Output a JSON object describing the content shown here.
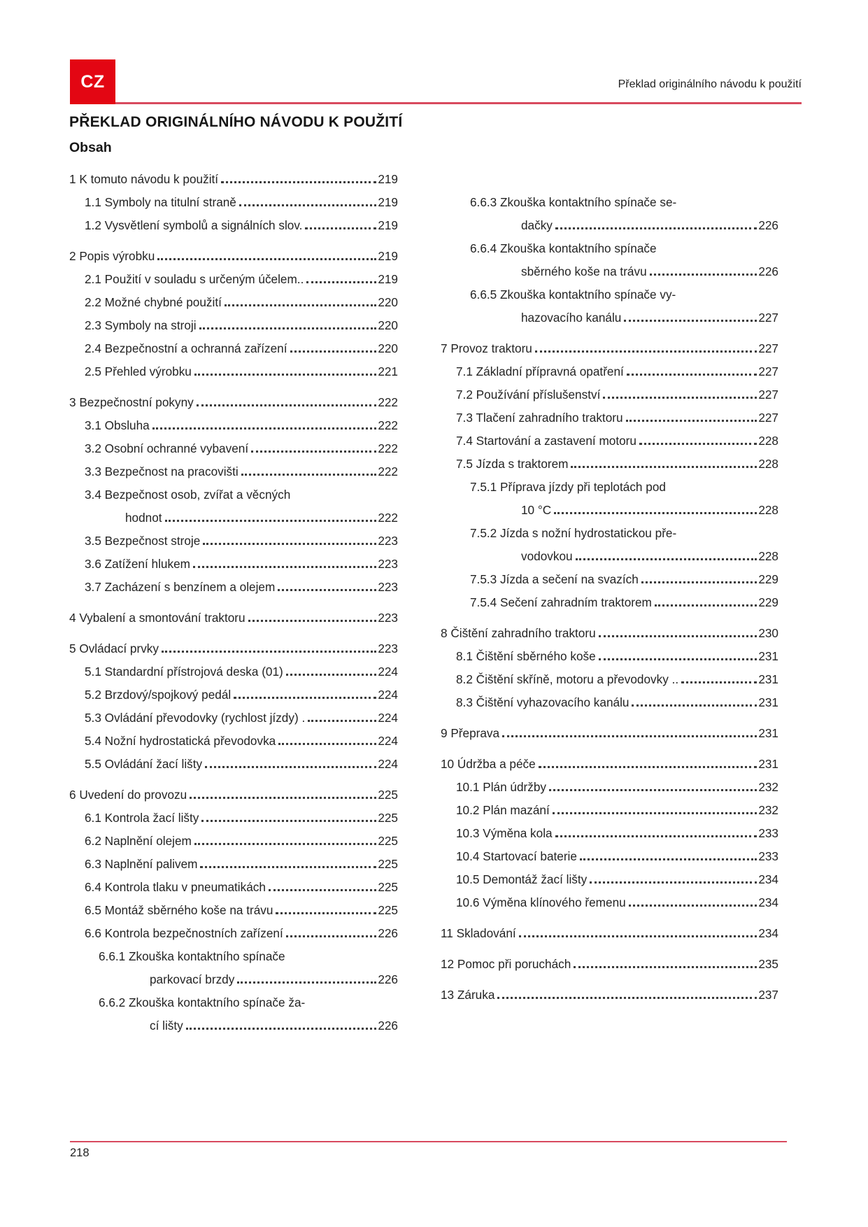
{
  "page": {
    "language_badge": "CZ",
    "header_right": "Překlad originálního návodu k použití",
    "title": "PŘEKLAD ORIGINÁLNÍHO NÁVODU K POUŽITÍ",
    "contents_heading": "Obsah",
    "page_number": "218",
    "accent_color": "#e30613",
    "rule_color": "#d84a5e"
  },
  "toc": {
    "left_column": [
      {
        "level": 1,
        "lines": [
          "1 K tomuto návodu k použití"
        ],
        "page": "219"
      },
      {
        "level": 2,
        "lines": [
          "1.1 Symboly na titulní straně"
        ],
        "page": "219"
      },
      {
        "level": 2,
        "lines": [
          "1.2 Vysvětlení symbolů a signálních slov."
        ],
        "page": "219"
      },
      {
        "level": 1,
        "lines": [
          "2 Popis výrobku"
        ],
        "page": "219"
      },
      {
        "level": 2,
        "lines": [
          "2.1 Použití v souladu s určeným účelem.."
        ],
        "page": "219"
      },
      {
        "level": 2,
        "lines": [
          "2.2 Možné chybné použití"
        ],
        "page": "220"
      },
      {
        "level": 2,
        "lines": [
          "2.3 Symboly na stroji"
        ],
        "page": "220"
      },
      {
        "level": 2,
        "lines": [
          "2.4 Bezpečnostní a ochranná zařízení"
        ],
        "page": "220"
      },
      {
        "level": 2,
        "lines": [
          "2.5 Přehled výrobku"
        ],
        "page": "221"
      },
      {
        "level": 1,
        "lines": [
          "3 Bezpečnostní pokyny"
        ],
        "page": "222"
      },
      {
        "level": 2,
        "lines": [
          "3.1 Obsluha"
        ],
        "page": "222"
      },
      {
        "level": 2,
        "lines": [
          "3.2 Osobní ochranné vybavení"
        ],
        "page": "222"
      },
      {
        "level": 2,
        "lines": [
          "3.3 Bezpečnost na pracovišti"
        ],
        "page": "222"
      },
      {
        "level": 2,
        "lines": [
          "3.4 Bezpečnost osob, zvířat a věcných",
          "hodnot"
        ],
        "page": "222"
      },
      {
        "level": 2,
        "lines": [
          "3.5 Bezpečnost stroje"
        ],
        "page": "223"
      },
      {
        "level": 2,
        "lines": [
          "3.6 Zatížení hlukem"
        ],
        "page": "223"
      },
      {
        "level": 2,
        "lines": [
          "3.7 Zacházení s benzínem a olejem"
        ],
        "page": "223"
      },
      {
        "level": 1,
        "lines": [
          "4 Vybalení a smontování traktoru"
        ],
        "page": "223"
      },
      {
        "level": 1,
        "lines": [
          "5 Ovládací prvky"
        ],
        "page": "223"
      },
      {
        "level": 2,
        "lines": [
          "5.1 Standardní přístrojová deska (01)"
        ],
        "page": "224"
      },
      {
        "level": 2,
        "lines": [
          "5.2 Brzdový/spojkový pedál"
        ],
        "page": "224"
      },
      {
        "level": 2,
        "lines": [
          "5.3 Ovládání převodovky (rychlost jízdy) ."
        ],
        "page": "224"
      },
      {
        "level": 2,
        "lines": [
          "5.4 Nožní hydrostatická převodovka"
        ],
        "page": "224"
      },
      {
        "level": 2,
        "lines": [
          "5.5 Ovládání žací lišty"
        ],
        "page": "224"
      },
      {
        "level": 1,
        "lines": [
          "6 Uvedení do provozu"
        ],
        "page": "225"
      },
      {
        "level": 2,
        "lines": [
          "6.1 Kontrola žací lišty"
        ],
        "page": "225"
      },
      {
        "level": 2,
        "lines": [
          "6.2 Naplnění olejem"
        ],
        "page": "225"
      },
      {
        "level": 2,
        "lines": [
          "6.3 Naplnění palivem"
        ],
        "page": "225"
      },
      {
        "level": 2,
        "lines": [
          "6.4 Kontrola tlaku v pneumatikách"
        ],
        "page": "225"
      },
      {
        "level": 2,
        "lines": [
          "6.5 Montáž sběrného koše na trávu"
        ],
        "page": "225"
      },
      {
        "level": 2,
        "lines": [
          "6.6 Kontrola bezpečnostních zařízení"
        ],
        "page": "226"
      },
      {
        "level": 3,
        "lines": [
          "6.6.1 Zkouška kontaktního spínače",
          "parkovací brzdy"
        ],
        "page": "226"
      },
      {
        "level": 3,
        "lines": [
          "6.6.2 Zkouška kontaktního spínače ža-",
          "cí lišty"
        ],
        "page": "226"
      }
    ],
    "right_column": [
      {
        "level": 3,
        "lines": [
          "6.6.3 Zkouška kontaktního spínače se-",
          "dačky"
        ],
        "page": "226"
      },
      {
        "level": 3,
        "lines": [
          "6.6.4 Zkouška kontaktního spínače",
          "sběrného koše na trávu"
        ],
        "page": "226"
      },
      {
        "level": 3,
        "lines": [
          "6.6.5 Zkouška kontaktního spínače vy-",
          "hazovacího kanálu"
        ],
        "page": "227"
      },
      {
        "level": 1,
        "lines": [
          "7 Provoz traktoru"
        ],
        "page": "227"
      },
      {
        "level": 2,
        "lines": [
          "7.1 Základní přípravná opatření"
        ],
        "page": "227"
      },
      {
        "level": 2,
        "lines": [
          "7.2 Používání příslušenství"
        ],
        "page": "227"
      },
      {
        "level": 2,
        "lines": [
          "7.3 Tlačení zahradního traktoru"
        ],
        "page": "227"
      },
      {
        "level": 2,
        "lines": [
          "7.4 Startování a zastavení motoru"
        ],
        "page": "228"
      },
      {
        "level": 2,
        "lines": [
          "7.5 Jízda s traktorem"
        ],
        "page": "228"
      },
      {
        "level": 3,
        "lines": [
          "7.5.1 Příprava jízdy při teplotách pod",
          "10 °C"
        ],
        "page": "228"
      },
      {
        "level": 3,
        "lines": [
          "7.5.2 Jízda s nožní hydrostatickou pře-",
          "vodovkou"
        ],
        "page": "228"
      },
      {
        "level": 3,
        "lines": [
          "7.5.3 Jízda a sečení na svazích"
        ],
        "page": "229"
      },
      {
        "level": 3,
        "lines": [
          "7.5.4 Sečení zahradním traktorem"
        ],
        "page": "229"
      },
      {
        "level": 1,
        "lines": [
          "8 Čištění zahradního traktoru"
        ],
        "page": "230"
      },
      {
        "level": 2,
        "lines": [
          "8.1 Čištění sběrného koše"
        ],
        "page": "231"
      },
      {
        "level": 2,
        "lines": [
          "8.2 Čištění skříně, motoru a převodovky .."
        ],
        "page": "231"
      },
      {
        "level": 2,
        "lines": [
          "8.3 Čištění vyhazovacího kanálu"
        ],
        "page": "231"
      },
      {
        "level": 1,
        "lines": [
          "9 Přeprava"
        ],
        "page": "231"
      },
      {
        "level": 1,
        "lines": [
          "10 Údržba a péče"
        ],
        "page": "231"
      },
      {
        "level": 2,
        "lines": [
          "10.1 Plán údržby"
        ],
        "page": "232"
      },
      {
        "level": 2,
        "lines": [
          "10.2 Plán mazání"
        ],
        "page": "232"
      },
      {
        "level": 2,
        "lines": [
          "10.3 Výměna kola"
        ],
        "page": "233"
      },
      {
        "level": 2,
        "lines": [
          "10.4 Startovací baterie"
        ],
        "page": "233"
      },
      {
        "level": 2,
        "lines": [
          "10.5 Demontáž žací lišty"
        ],
        "page": "234"
      },
      {
        "level": 2,
        "lines": [
          "10.6 Výměna klínového řemenu"
        ],
        "page": "234"
      },
      {
        "level": 1,
        "lines": [
          "11 Skladování"
        ],
        "page": "234"
      },
      {
        "level": 1,
        "lines": [
          "12 Pomoc při poruchách"
        ],
        "page": "235"
      },
      {
        "level": 1,
        "lines": [
          "13 Záruka"
        ],
        "page": "237"
      }
    ]
  }
}
